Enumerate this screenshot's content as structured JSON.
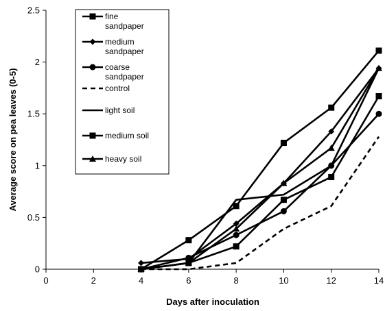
{
  "chart_data": {
    "type": "line",
    "title": "",
    "xlabel": "Days after inoculation",
    "ylabel": "Average score on pea leaves (0-5)",
    "xlim": [
      0,
      14
    ],
    "ylim": [
      0,
      2.5
    ],
    "xticks": [
      "0",
      "2",
      "4",
      "6",
      "8",
      "10",
      "12",
      "14"
    ],
    "yticks": [
      "0",
      "0.5",
      "1",
      "1.5",
      "2",
      "2.5"
    ],
    "grid": false,
    "legend_position": "top-left",
    "x": [
      4,
      6,
      8,
      10,
      12,
      14
    ],
    "series": [
      {
        "name": "fine sandpaper",
        "marker": "square",
        "dash": "solid",
        "values": [
          0,
          0.28,
          0.61,
          1.22,
          1.56,
          2.11
        ]
      },
      {
        "name": "medium sandpaper",
        "marker": "diamond",
        "dash": "solid",
        "values": [
          0.06,
          0.1,
          0.44,
          0.83,
          1.33,
          1.94
        ]
      },
      {
        "name": "coarse sandpaper",
        "marker": "circle",
        "dash": "solid",
        "values": [
          0,
          0.11,
          0.33,
          0.56,
          1.0,
          1.5
        ]
      },
      {
        "name": "control",
        "marker": "none",
        "dash": "dashed",
        "values": [
          0,
          0,
          0.06,
          0.39,
          0.61,
          1.28
        ]
      },
      {
        "name": "light soil",
        "marker": "none",
        "dash": "solid",
        "values": [
          0,
          0.06,
          0.67,
          0.72,
          1.0,
          1.94
        ]
      },
      {
        "name": "medium soil",
        "marker": "square",
        "dash": "solid",
        "values": [
          0,
          0.06,
          0.22,
          0.67,
          0.89,
          1.67
        ]
      },
      {
        "name": "heavy soil",
        "marker": "triangle",
        "dash": "solid",
        "values": [
          0,
          0.06,
          0.39,
          0.83,
          1.17,
          1.94
        ]
      }
    ],
    "legend": [
      {
        "lines": [
          "fine",
          "sandpaper"
        ],
        "series": 0
      },
      {
        "lines": [
          "medium",
          "sandpaper"
        ],
        "series": 1
      },
      {
        "lines": [
          "coarse",
          "sandpaper"
        ],
        "series": 2
      },
      {
        "lines": [
          "control"
        ],
        "series": 3
      },
      {
        "lines": [
          "light soil"
        ],
        "series": 4
      },
      {
        "lines": [
          "medium soil"
        ],
        "series": 5
      },
      {
        "lines": [
          "heavy soil"
        ],
        "series": 6
      }
    ]
  }
}
